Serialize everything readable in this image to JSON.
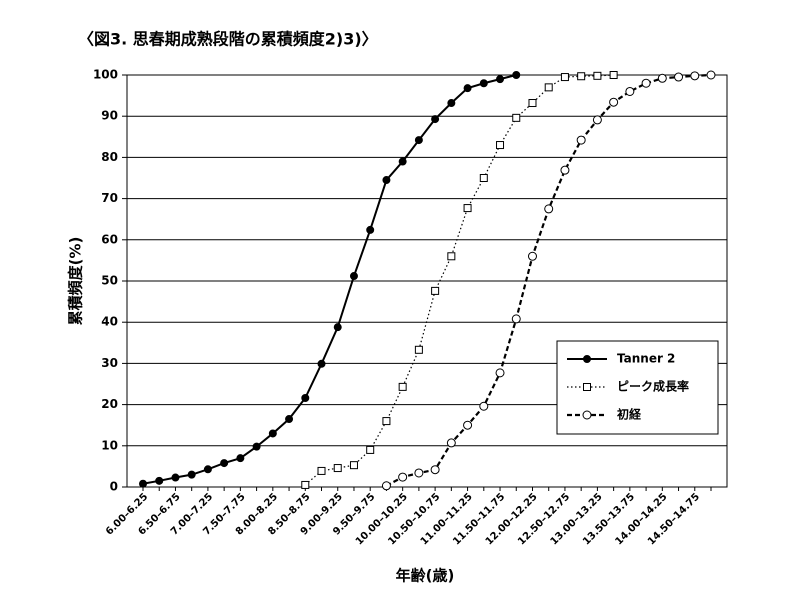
{
  "chart_data": {
    "type": "line",
    "title": "〈図3. 思春期成熟段階の累積頻度2)3)〉",
    "x_label": "年齢(歳)",
    "y_label": "累積頻度(%)",
    "categories": [
      "6.00–6.25",
      null,
      "6.50–6.75",
      null,
      "7.00–7.25",
      null,
      "7.50–7.75",
      null,
      "8.00–8.25",
      null,
      "8.50–8.75",
      null,
      "9.00–9.25",
      null,
      "9.50–9.75",
      null,
      "10.00–10.25",
      null,
      "10.50–10.75",
      null,
      "11.00–11.25",
      null,
      "11.50–11.75",
      null,
      "12.00–12.25",
      null,
      "12.50–12.75",
      null,
      "13.00–13.25",
      null,
      "13.50–13.75",
      null,
      "14.00–14.25",
      null,
      "14.50–14.75",
      null
    ],
    "ylim": [
      0,
      100
    ],
    "yticks": [
      0,
      10,
      20,
      30,
      40,
      50,
      60,
      70,
      80,
      90,
      100
    ],
    "grid": true,
    "legend": "right",
    "series": [
      {
        "name": "Tanner 2",
        "color": "#000000",
        "line_style": "solid",
        "marker": "circle-filled",
        "values": [
          0.8,
          1.5,
          2.3,
          3,
          4.3,
          5.8,
          7,
          9.8,
          13,
          16.5,
          21.6,
          29.9,
          38.8,
          51.2,
          62.4,
          74.5,
          79,
          84.2,
          89.3,
          93.2,
          96.8,
          98,
          99,
          100,
          null,
          null,
          null,
          null,
          null,
          null,
          null,
          null,
          null,
          null,
          null,
          null
        ]
      },
      {
        "name": "ピーク成長率",
        "color": "#000000",
        "line_style": "dotted",
        "marker": "square-open",
        "values": [
          null,
          null,
          null,
          null,
          null,
          null,
          null,
          null,
          null,
          null,
          0.5,
          3.9,
          4.6,
          5.3,
          9,
          16,
          24.3,
          33.3,
          47.6,
          56,
          67.7,
          75,
          83,
          89.6,
          93.2,
          97,
          99.5,
          99.7,
          99.8,
          100,
          null,
          null,
          null,
          null,
          null,
          null
        ]
      },
      {
        "name": "初経",
        "color": "#000000",
        "line_style": "dashed",
        "marker": "circle-open",
        "values": [
          null,
          null,
          null,
          null,
          null,
          null,
          null,
          null,
          null,
          null,
          null,
          null,
          null,
          null,
          null,
          0.3,
          2.4,
          3.4,
          4.2,
          10.7,
          15,
          19.6,
          27.7,
          40.8,
          56,
          67.5,
          76.9,
          84.2,
          89.1,
          93.4,
          96,
          98,
          99.2,
          99.5,
          99.8,
          100
        ]
      }
    ]
  }
}
